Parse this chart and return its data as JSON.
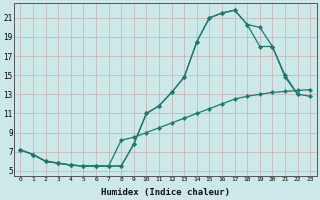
{
  "xlabel": "Humidex (Indice chaleur)",
  "bg_color": "#cce8e8",
  "line_color": "#1a7a6e",
  "grid_color": "#b0cccc",
  "xlim": [
    -0.5,
    23.5
  ],
  "ylim": [
    4.5,
    22.5
  ],
  "yticks": [
    5,
    7,
    9,
    11,
    13,
    15,
    17,
    19,
    21
  ],
  "xticks": [
    0,
    1,
    2,
    3,
    4,
    5,
    6,
    7,
    8,
    9,
    10,
    11,
    12,
    13,
    14,
    15,
    16,
    17,
    18,
    19,
    20,
    21,
    22,
    23
  ],
  "curve1_x": [
    0,
    1,
    2,
    3,
    4,
    5,
    6,
    7,
    8,
    9,
    10,
    11,
    12,
    13,
    14,
    15,
    16,
    17,
    18,
    19,
    20,
    21,
    22
  ],
  "curve1_y": [
    7.2,
    6.7,
    6.0,
    5.8,
    5.6,
    5.5,
    5.5,
    5.5,
    5.5,
    7.8,
    11.0,
    11.8,
    13.2,
    14.8,
    18.5,
    21.0,
    21.5,
    21.8,
    20.3,
    20.0,
    18.0,
    15.0,
    13.0
  ],
  "curve2_x": [
    0,
    1,
    2,
    3,
    4,
    5,
    6,
    7,
    8,
    9,
    10,
    11,
    12,
    13,
    14,
    15,
    16,
    17,
    18,
    19,
    20,
    21,
    22,
    23
  ],
  "curve2_y": [
    7.2,
    6.7,
    6.0,
    5.8,
    5.6,
    5.5,
    5.5,
    5.5,
    5.5,
    7.8,
    11.0,
    11.8,
    13.2,
    14.8,
    18.5,
    21.0,
    21.5,
    21.8,
    20.3,
    18.0,
    18.0,
    14.8,
    13.0,
    12.8
  ],
  "curve3_x": [
    0,
    1,
    2,
    3,
    4,
    5,
    6,
    7,
    8,
    9,
    10,
    11,
    12,
    13,
    14,
    15,
    16,
    17,
    18,
    19,
    20,
    21,
    22,
    23
  ],
  "curve3_y": [
    7.2,
    6.7,
    6.0,
    5.8,
    5.6,
    5.5,
    5.5,
    5.5,
    8.2,
    8.5,
    9.0,
    9.5,
    10.0,
    10.5,
    11.0,
    11.5,
    12.0,
    12.5,
    12.8,
    13.0,
    13.2,
    13.3,
    13.4,
    13.5
  ]
}
